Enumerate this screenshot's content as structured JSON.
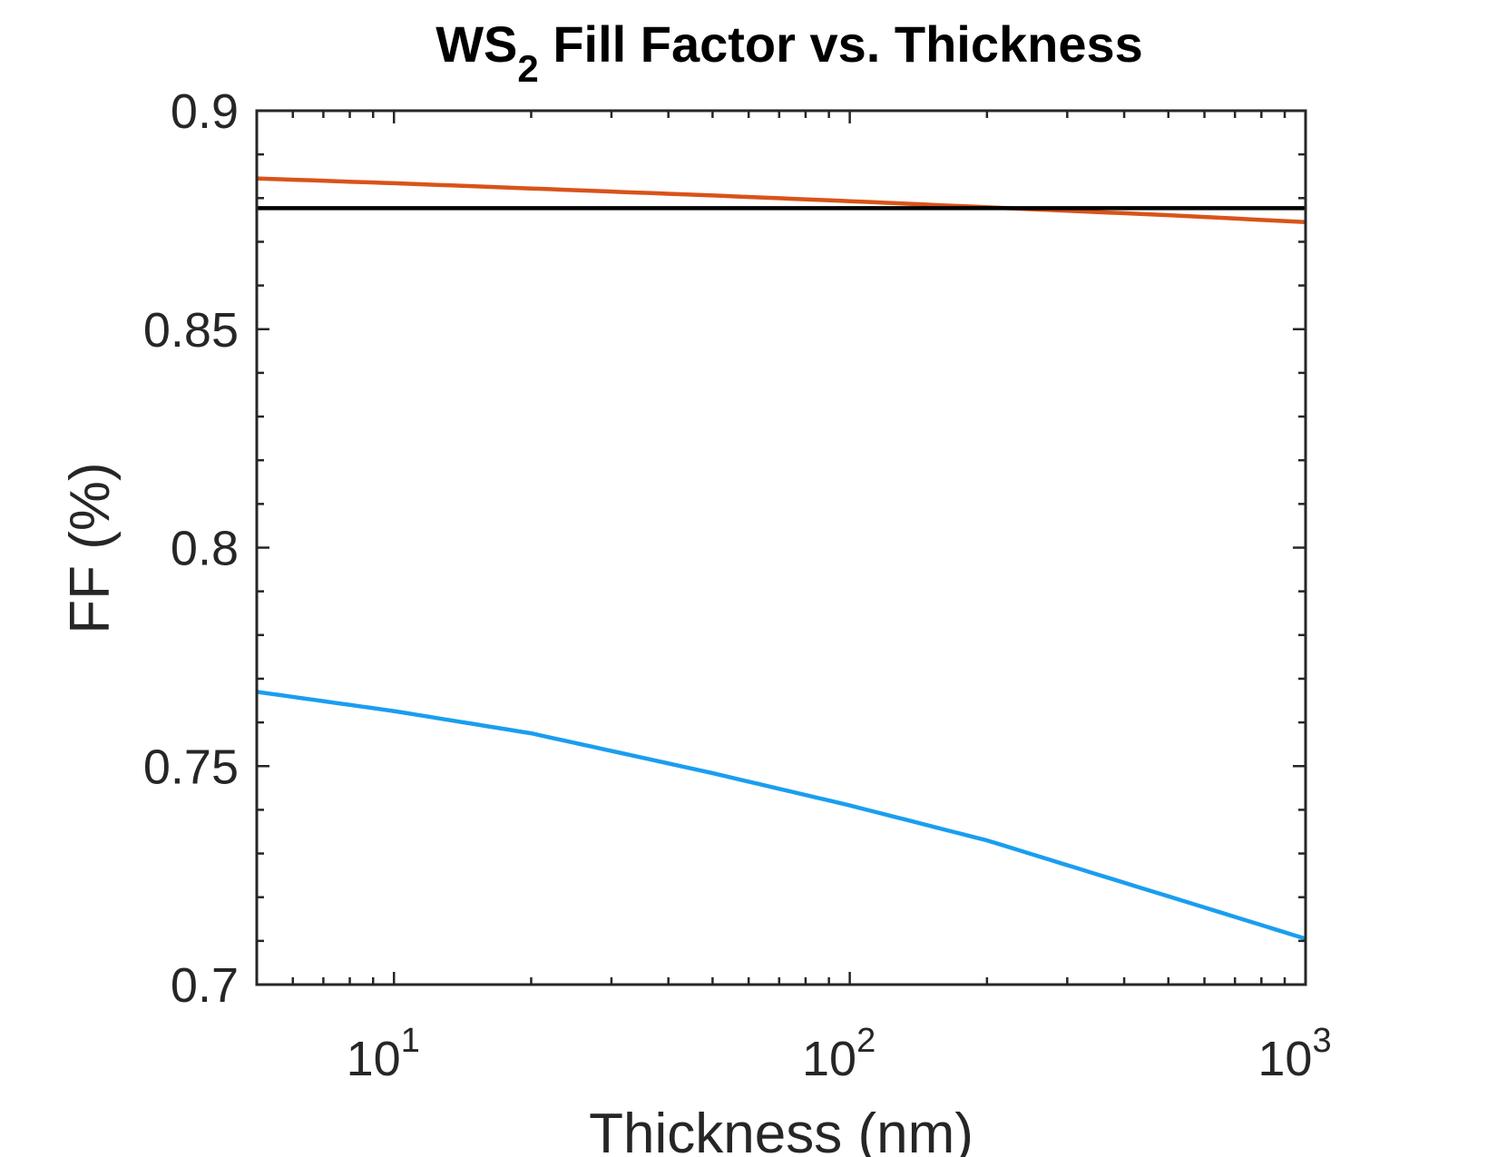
{
  "chart_data": {
    "type": "line",
    "title": {
      "main": "WS",
      "sub": "2",
      "rest": " Fill Factor vs. Thickness"
    },
    "xlabel": "Thickness (nm)",
    "ylabel": "FF (%)",
    "xscale": "log",
    "xlim": [
      5,
      1000
    ],
    "ylim": [
      0.7,
      0.9
    ],
    "x_ticks": [
      {
        "base": "10",
        "exp": "1",
        "value": 10
      },
      {
        "base": "10",
        "exp": "2",
        "value": 100
      },
      {
        "base": "10",
        "exp": "3",
        "value": 1000
      }
    ],
    "y_ticks": [
      {
        "label": "0.7",
        "value": 0.7
      },
      {
        "label": "0.75",
        "value": 0.75
      },
      {
        "label": "0.8",
        "value": 0.8
      },
      {
        "label": "0.85",
        "value": 0.85
      },
      {
        "label": "0.9",
        "value": 0.9
      }
    ],
    "grid": false,
    "legend": "none",
    "series": [
      {
        "color": "#D95319",
        "x": [
          5,
          10,
          20,
          50,
          100,
          200,
          500,
          1000
        ],
        "y": [
          0.8845,
          0.8834,
          0.8822,
          0.8806,
          0.8793,
          0.8779,
          0.8761,
          0.8745
        ]
      },
      {
        "color": "#000000",
        "x": [
          5,
          1000
        ],
        "y": [
          0.8777,
          0.8777
        ]
      },
      {
        "color": "#1A9EEF",
        "x": [
          5,
          10,
          20,
          50,
          100,
          200,
          500,
          1000
        ],
        "y": [
          0.767,
          0.7626,
          0.7575,
          0.7484,
          0.741,
          0.733,
          0.7202,
          0.7105
        ]
      }
    ]
  }
}
